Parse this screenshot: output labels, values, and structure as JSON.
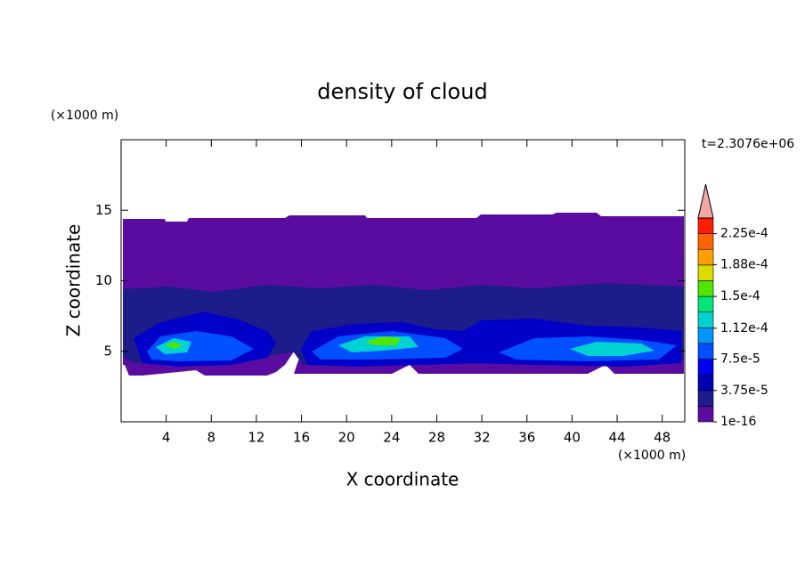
{
  "chart_data": {
    "type": "contour",
    "title": "density of cloud",
    "x_label": "X coordinate",
    "y_label": "Z coordinate",
    "x_unit": "(×1000 m)",
    "y_unit": "(×1000 m)",
    "annotation": "t=2.3076e+06",
    "xlim": [
      0,
      50
    ],
    "ylim": [
      0,
      20
    ],
    "xticks": [
      4,
      8,
      12,
      16,
      20,
      24,
      28,
      32,
      36,
      40,
      44,
      48
    ],
    "yticks": [
      5,
      10,
      15
    ],
    "colorbar": {
      "clim": [
        0,
        0.00024375
      ],
      "colors": [
        "#5a0ca0",
        "#1c1c8a",
        "#0000b4",
        "#0000f0",
        "#0050ff",
        "#0096ff",
        "#00d2d2",
        "#00e678",
        "#50e600",
        "#dcdc00",
        "#ffa000",
        "#ff6400",
        "#ff1e00"
      ],
      "extend_color": "#f4a6a6",
      "ticks": [
        1e-16,
        {
          "value": 3.75e-05,
          "label": "3.75e-5"
        },
        {
          "value": 7.5e-05,
          "label": "7.5e-5"
        },
        {
          "value": 0.000112,
          "label": "1.12e-4"
        },
        {
          "value": 0.00015,
          "label": "1.5e-4"
        },
        {
          "value": 0.000188,
          "label": "1.88e-4"
        },
        {
          "value": 0.000225,
          "label": "2.25e-4"
        }
      ]
    }
  }
}
